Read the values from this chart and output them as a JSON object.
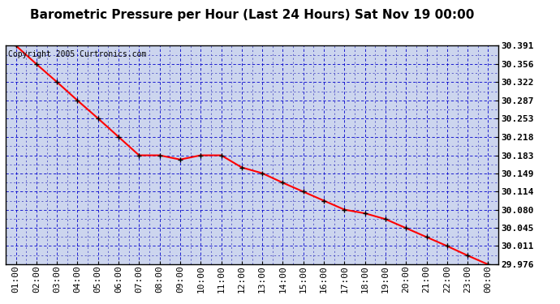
{
  "title": "Barometric Pressure per Hour (Last 24 Hours) Sat Nov 19 00:00",
  "copyright": "Copyright 2005 Curtronics.com",
  "x_labels": [
    "01:00",
    "02:00",
    "03:00",
    "04:00",
    "05:00",
    "06:00",
    "07:00",
    "08:00",
    "09:00",
    "10:00",
    "11:00",
    "12:00",
    "13:00",
    "14:00",
    "15:00",
    "16:00",
    "17:00",
    "18:00",
    "19:00",
    "20:00",
    "21:00",
    "22:00",
    "23:00",
    "00:00"
  ],
  "y_values": [
    30.391,
    30.356,
    30.322,
    30.287,
    30.253,
    30.218,
    30.183,
    30.183,
    30.175,
    30.183,
    30.183,
    30.16,
    30.149,
    30.131,
    30.114,
    30.097,
    30.08,
    30.073,
    30.062,
    30.045,
    30.028,
    30.011,
    29.993,
    29.976
  ],
  "y_ticks": [
    29.976,
    30.011,
    30.045,
    30.08,
    30.114,
    30.149,
    30.183,
    30.218,
    30.253,
    30.287,
    30.322,
    30.356,
    30.391
  ],
  "y_min": 29.976,
  "y_max": 30.391,
  "line_color": "red",
  "marker_color": "black",
  "fig_bg_color": "#ffffff",
  "plot_bg_color": "#ccd5ee",
  "title_fontsize": 11,
  "copyright_fontsize": 7,
  "tick_fontsize": 8,
  "border_color": "black"
}
